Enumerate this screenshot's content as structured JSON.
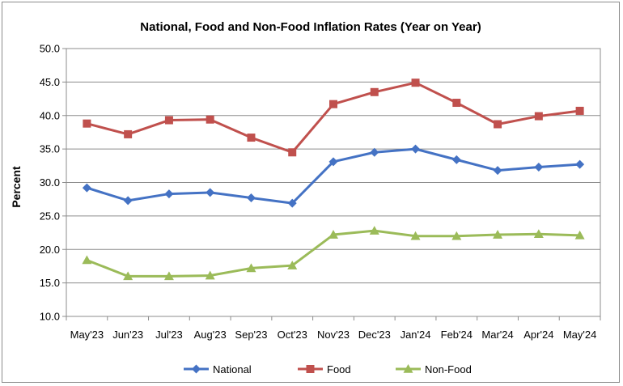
{
  "chart_data": {
    "type": "line",
    "title": "National, Food and Non-Food Inflation Rates (Year on Year)",
    "xlabel": "",
    "ylabel": "Percent",
    "ylim": [
      10,
      50
    ],
    "yticks": [
      "10.0",
      "15.0",
      "20.0",
      "25.0",
      "30.0",
      "35.0",
      "40.0",
      "45.0",
      "50.0"
    ],
    "categories": [
      "May'23",
      "Jun'23",
      "Jul'23",
      "Aug'23",
      "Sep'23",
      "Oct'23",
      "Nov'23",
      "Dec'23",
      "Jan'24",
      "Feb'24",
      "Mar'24",
      "Apr'24",
      "May'24"
    ],
    "grid": true,
    "legend_position": "bottom",
    "series": [
      {
        "name": "National",
        "color": "#4472C4",
        "marker": "diamond",
        "values": [
          29.2,
          27.3,
          28.3,
          28.5,
          27.7,
          26.9,
          33.1,
          34.5,
          35.0,
          33.4,
          31.8,
          32.3,
          32.7
        ]
      },
      {
        "name": "Food",
        "color": "#C0504D",
        "marker": "square",
        "values": [
          38.8,
          37.2,
          39.3,
          39.4,
          36.7,
          34.5,
          41.7,
          43.5,
          44.9,
          41.9,
          38.7,
          39.9,
          40.7
        ]
      },
      {
        "name": "Non-Food",
        "color": "#9BBB59",
        "marker": "triangle",
        "values": [
          18.4,
          16.0,
          16.0,
          16.1,
          17.2,
          17.6,
          22.2,
          22.8,
          22.0,
          22.0,
          22.2,
          22.3,
          22.1
        ]
      }
    ]
  }
}
